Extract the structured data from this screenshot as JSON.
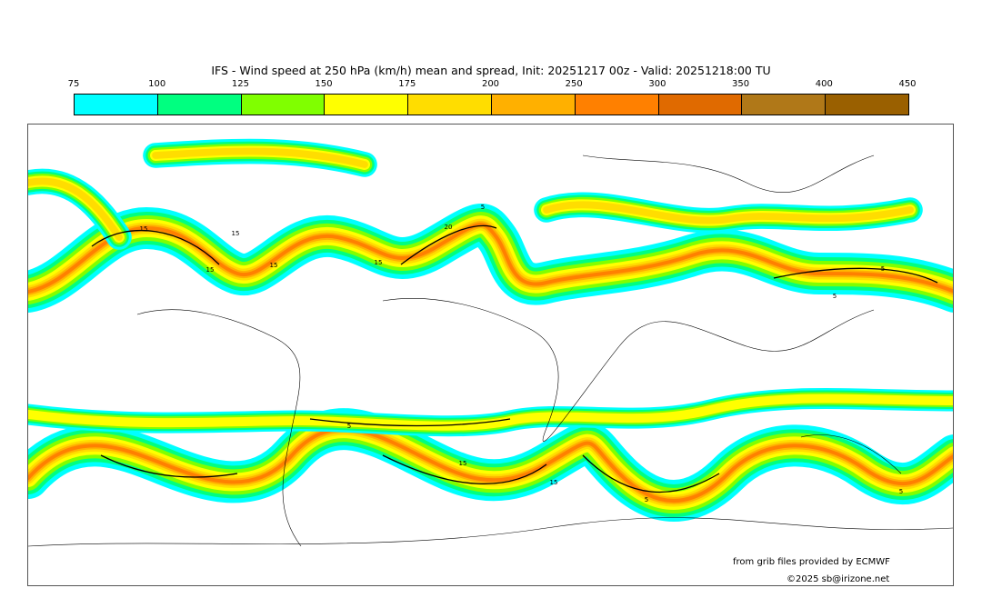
{
  "title": "IFS - Wind speed at 250 hPa (km/h) mean and spread, Init: 20251217 00z - Valid: 20251218:00 TU",
  "legend": {
    "ticks": [
      "75",
      "100",
      "125",
      "150",
      "175",
      "200",
      "250",
      "300",
      "350",
      "400",
      "450"
    ],
    "colors": [
      "#00ffff",
      "#00ff80",
      "#80ff00",
      "#ffff00",
      "#ffdd00",
      "#ffb000",
      "#ff8000",
      "#e06a00",
      "#b07818",
      "#9a6000"
    ]
  },
  "contour_labels": [
    "15",
    "15",
    "15",
    "15",
    "20",
    "5",
    "15",
    "5",
    "5",
    "5",
    "15",
    "15",
    "5",
    "5"
  ],
  "credits": {
    "source": "from grib files provided by ECMWF",
    "copyright": "©2025 sb@irizone.net"
  }
}
